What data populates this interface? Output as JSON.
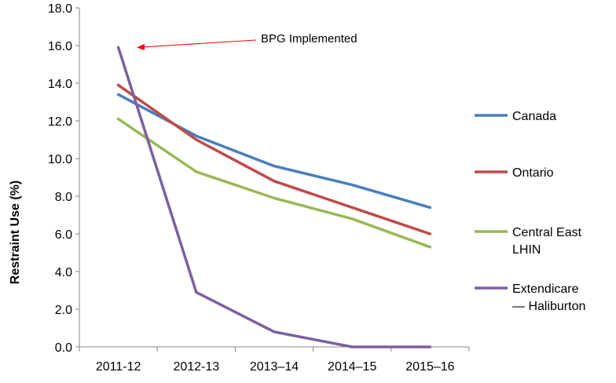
{
  "chart_data": {
    "type": "line",
    "title": "",
    "xlabel": "",
    "ylabel": "Restraint Use (%)",
    "categories": [
      "2011-12",
      "2012-13",
      "2013–14",
      "2014–15",
      "2015–16"
    ],
    "ylim": [
      0,
      18
    ],
    "yticks": [
      "0.0",
      "2.0",
      "4.0",
      "6.0",
      "8.0",
      "10.0",
      "12.0",
      "14.0",
      "16.0",
      "18.0"
    ],
    "grid": false,
    "legend_position": "right",
    "series": [
      {
        "name": "Canada",
        "color": "#4a7ebb",
        "values": [
          13.4,
          11.2,
          9.6,
          8.6,
          7.4
        ]
      },
      {
        "name": "Ontario",
        "color": "#be4b48",
        "values": [
          13.9,
          11.0,
          8.8,
          7.4,
          6.0
        ]
      },
      {
        "name": "Central East LHIN",
        "legend_lines": [
          "Central East",
          "LHIN"
        ],
        "color": "#98b954",
        "values": [
          12.1,
          9.3,
          7.9,
          6.8,
          5.3
        ]
      },
      {
        "name": "Extendicare — Haliburton",
        "legend_lines": [
          "Extendicare",
          "— Haliburton"
        ],
        "color": "#7d60a0",
        "values": [
          15.9,
          2.9,
          0.8,
          0.0,
          0.0
        ]
      }
    ],
    "annotations": [
      {
        "text": "BPG Implemented",
        "points_to": {
          "category": "2011-12",
          "value": 15.9
        },
        "arrow_color": "#ff0000"
      }
    ]
  }
}
